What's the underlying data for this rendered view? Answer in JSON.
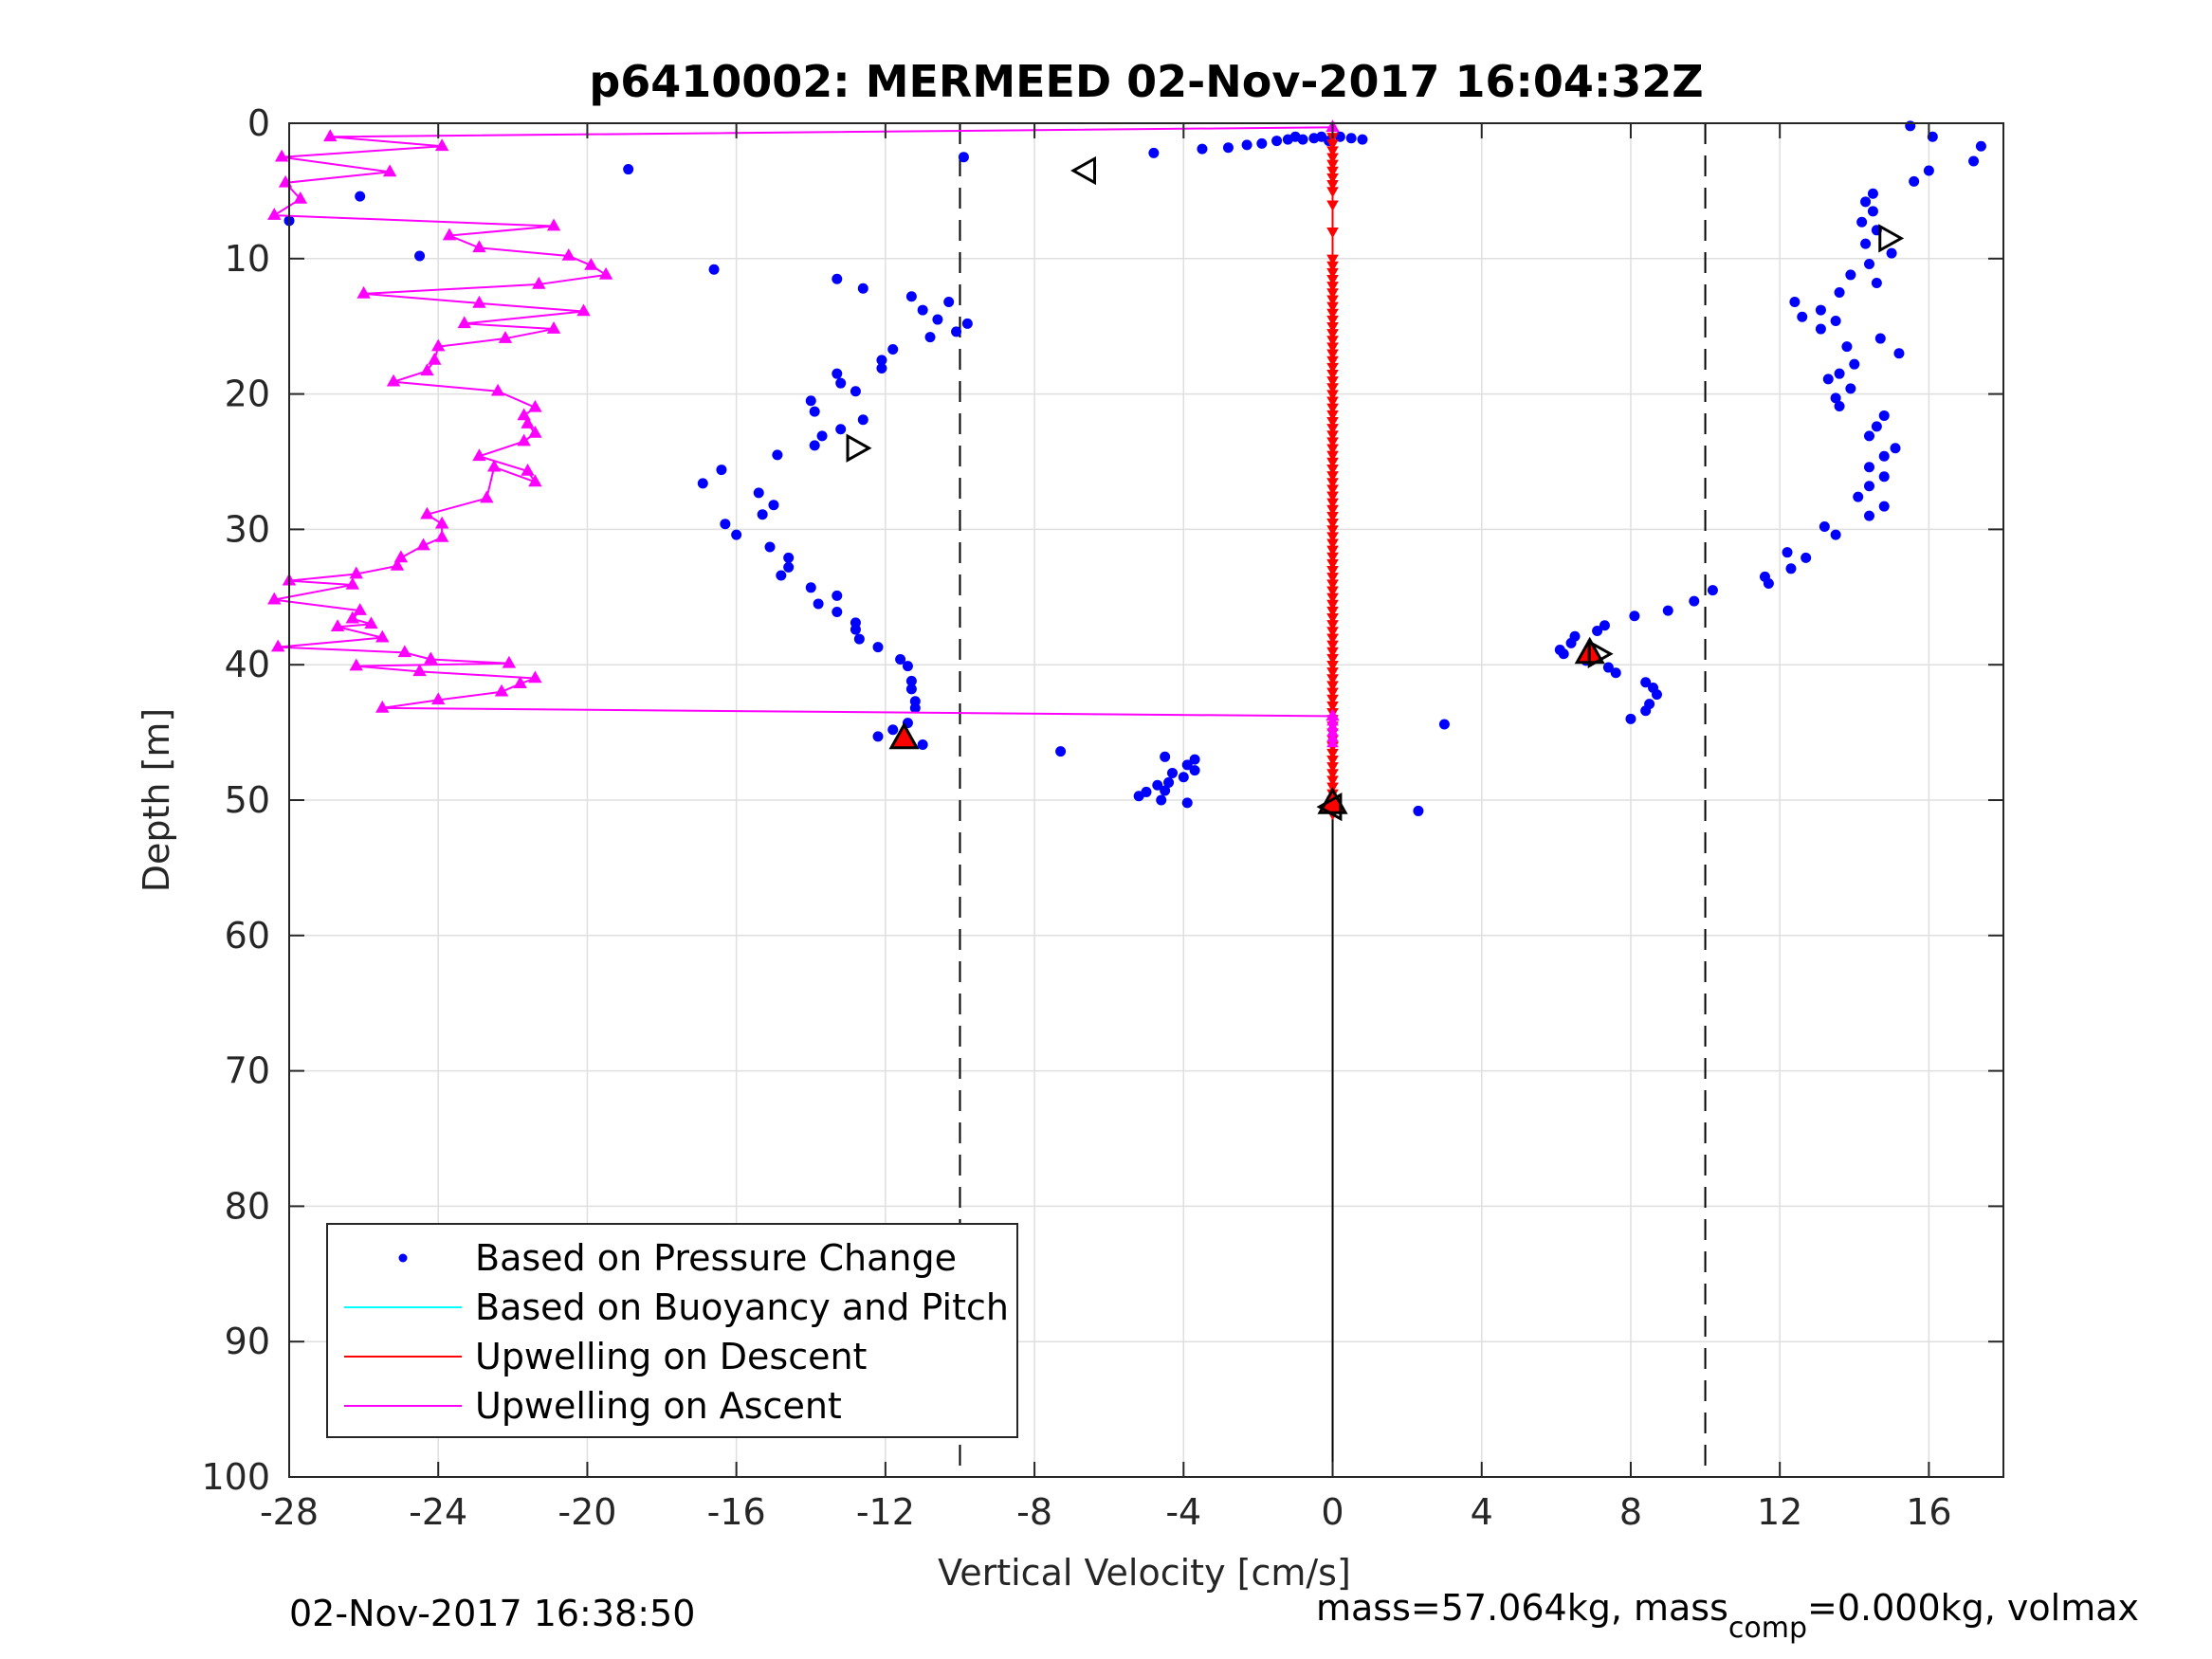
{
  "chart_data": {
    "type": "scatter",
    "title": "p6410002: MERMEED 02-Nov-2017 16:04:32Z",
    "xlabel": "Vertical Velocity [cm/s]",
    "ylabel": "Depth [m]",
    "xlim": [
      -28,
      18
    ],
    "ylim": [
      0,
      100
    ],
    "y_reversed": true,
    "grid": true,
    "xticks": [
      -28,
      -24,
      -20,
      -16,
      -12,
      -8,
      -4,
      0,
      4,
      8,
      12,
      16
    ],
    "yticks": [
      0,
      10,
      20,
      30,
      40,
      50,
      60,
      70,
      80,
      90,
      100
    ],
    "reference_lines": {
      "dashed_x": [
        -10,
        10
      ],
      "solid_x": 0,
      "solid_x_depth_range": [
        44,
        100
      ]
    },
    "legend": {
      "placement": "bottom-left",
      "entries": [
        {
          "label": "Based on Pressure Change",
          "color": "#0000ff",
          "marker": "dot"
        },
        {
          "label": "Based on Buoyancy and Pitch",
          "color": "#00ffff",
          "marker": "line"
        },
        {
          "label": "Upwelling on Descent",
          "color": "#ff0000",
          "marker": "line"
        },
        {
          "label": "Upwelling on Ascent",
          "color": "#ff00ff",
          "marker": "line"
        }
      ]
    },
    "series": [
      {
        "name": "Based on Pressure Change",
        "color": "#0000ff",
        "style": "dots",
        "points": [
          [
            -28.0,
            7.2
          ],
          [
            -26.1,
            5.4
          ],
          [
            -24.5,
            9.8
          ],
          [
            -18.9,
            3.4
          ],
          [
            -16.6,
            10.8
          ],
          [
            -9.9,
            2.5
          ],
          [
            -4.8,
            2.2
          ],
          [
            -3.5,
            1.9
          ],
          [
            -2.8,
            1.8
          ],
          [
            -2.3,
            1.6
          ],
          [
            -1.9,
            1.5
          ],
          [
            -1.5,
            1.3
          ],
          [
            -1.2,
            1.2
          ],
          [
            -1.0,
            1.0
          ],
          [
            -0.8,
            1.2
          ],
          [
            -0.5,
            1.1
          ],
          [
            -0.3,
            1.0
          ],
          [
            -0.1,
            1.3
          ],
          [
            0.2,
            1.0
          ],
          [
            0.5,
            1.1
          ],
          [
            0.8,
            1.2
          ],
          [
            -13.3,
            11.5
          ],
          [
            -12.6,
            12.2
          ],
          [
            -11.3,
            12.8
          ],
          [
            -11.0,
            13.8
          ],
          [
            -10.3,
            13.2
          ],
          [
            -10.6,
            14.5
          ],
          [
            -9.8,
            14.8
          ],
          [
            -10.1,
            15.4
          ],
          [
            -10.8,
            15.8
          ],
          [
            -11.8,
            16.7
          ],
          [
            -12.1,
            17.5
          ],
          [
            -12.1,
            18.1
          ],
          [
            -13.3,
            18.5
          ],
          [
            -13.2,
            19.2
          ],
          [
            -12.8,
            19.8
          ],
          [
            -14.0,
            20.5
          ],
          [
            -13.9,
            21.3
          ],
          [
            -12.6,
            21.9
          ],
          [
            -13.2,
            22.6
          ],
          [
            -13.7,
            23.1
          ],
          [
            -13.9,
            23.8
          ],
          [
            -14.9,
            24.5
          ],
          [
            -16.4,
            25.6
          ],
          [
            -16.9,
            26.6
          ],
          [
            -15.4,
            27.3
          ],
          [
            -15.0,
            28.2
          ],
          [
            -15.3,
            28.9
          ],
          [
            -16.3,
            29.6
          ],
          [
            -16.0,
            30.4
          ],
          [
            -15.1,
            31.3
          ],
          [
            -14.6,
            32.1
          ],
          [
            -14.6,
            32.8
          ],
          [
            -14.8,
            33.4
          ],
          [
            -14.0,
            34.3
          ],
          [
            -13.3,
            34.9
          ],
          [
            -13.8,
            35.5
          ],
          [
            -13.3,
            36.1
          ],
          [
            -12.8,
            36.9
          ],
          [
            -12.8,
            37.4
          ],
          [
            -12.7,
            38.1
          ],
          [
            -12.2,
            38.7
          ],
          [
            -11.6,
            39.6
          ],
          [
            -11.4,
            40.1
          ],
          [
            -11.3,
            41.2
          ],
          [
            -11.3,
            41.8
          ],
          [
            -11.2,
            42.7
          ],
          [
            -11.2,
            43.2
          ],
          [
            -11.4,
            44.3
          ],
          [
            -11.8,
            44.8
          ],
          [
            -12.2,
            45.3
          ],
          [
            -11.0,
            45.9
          ],
          [
            -7.3,
            46.4
          ],
          [
            -4.5,
            46.8
          ],
          [
            -3.7,
            47.0
          ],
          [
            -3.9,
            47.4
          ],
          [
            -3.7,
            47.8
          ],
          [
            -4.3,
            48.0
          ],
          [
            -4.0,
            48.3
          ],
          [
            -4.4,
            48.7
          ],
          [
            -4.7,
            48.9
          ],
          [
            -4.5,
            49.3
          ],
          [
            -5.0,
            49.4
          ],
          [
            -5.2,
            49.7
          ],
          [
            -4.6,
            50.0
          ],
          [
            -3.9,
            50.2
          ],
          [
            3.0,
            44.4
          ],
          [
            2.3,
            50.8
          ],
          [
            0.1,
            50.5
          ],
          [
            15.5,
            0.2
          ],
          [
            16.1,
            1.0
          ],
          [
            17.4,
            1.7
          ],
          [
            17.2,
            2.8
          ],
          [
            16.0,
            3.5
          ],
          [
            15.6,
            4.3
          ],
          [
            14.5,
            5.2
          ],
          [
            14.3,
            5.8
          ],
          [
            14.5,
            6.5
          ],
          [
            14.2,
            7.3
          ],
          [
            14.6,
            7.9
          ],
          [
            14.3,
            8.9
          ],
          [
            15.0,
            9.6
          ],
          [
            14.4,
            10.4
          ],
          [
            13.9,
            11.2
          ],
          [
            14.6,
            11.8
          ],
          [
            13.6,
            12.5
          ],
          [
            12.4,
            13.2
          ],
          [
            13.1,
            13.8
          ],
          [
            12.6,
            14.3
          ],
          [
            13.5,
            14.6
          ],
          [
            13.1,
            15.2
          ],
          [
            14.7,
            15.9
          ],
          [
            13.8,
            16.5
          ],
          [
            15.2,
            17.0
          ],
          [
            14.0,
            17.8
          ],
          [
            13.6,
            18.5
          ],
          [
            13.3,
            18.9
          ],
          [
            13.9,
            19.6
          ],
          [
            13.5,
            20.3
          ],
          [
            13.6,
            20.9
          ],
          [
            14.8,
            21.6
          ],
          [
            14.6,
            22.4
          ],
          [
            14.4,
            23.1
          ],
          [
            15.1,
            24.0
          ],
          [
            14.8,
            24.6
          ],
          [
            14.4,
            25.4
          ],
          [
            14.8,
            26.1
          ],
          [
            14.4,
            26.8
          ],
          [
            14.1,
            27.6
          ],
          [
            14.8,
            28.3
          ],
          [
            14.4,
            29.0
          ],
          [
            13.2,
            29.8
          ],
          [
            13.5,
            30.4
          ],
          [
            12.2,
            31.7
          ],
          [
            12.7,
            32.1
          ],
          [
            12.3,
            32.9
          ],
          [
            11.6,
            33.5
          ],
          [
            11.7,
            34.0
          ],
          [
            10.2,
            34.5
          ],
          [
            9.7,
            35.3
          ],
          [
            9.0,
            36.0
          ],
          [
            8.1,
            36.4
          ],
          [
            7.3,
            37.1
          ],
          [
            7.1,
            37.5
          ],
          [
            6.5,
            37.9
          ],
          [
            6.4,
            38.4
          ],
          [
            6.1,
            38.9
          ],
          [
            6.2,
            39.2
          ],
          [
            6.8,
            39.7
          ],
          [
            7.4,
            40.2
          ],
          [
            7.6,
            40.6
          ],
          [
            8.4,
            41.3
          ],
          [
            8.6,
            41.7
          ],
          [
            8.7,
            42.2
          ],
          [
            8.5,
            42.9
          ],
          [
            8.4,
            43.4
          ],
          [
            8.0,
            44.0
          ]
        ]
      },
      {
        "name": "Upwelling on Descent",
        "color": "#ff0000",
        "style": "line-with-down-triangles",
        "depth_range": [
          1,
          51
        ],
        "x_value": 0
      },
      {
        "name": "Upwelling on Ascent",
        "color": "#ff00ff",
        "style": "line-with-up-triangles",
        "points": [
          [
            0.0,
            0.3
          ],
          [
            -26.9,
            1.0
          ],
          [
            -23.9,
            1.7
          ],
          [
            -28.2,
            2.5
          ],
          [
            -25.3,
            3.6
          ],
          [
            -28.1,
            4.4
          ],
          [
            -27.7,
            5.6
          ],
          [
            -28.4,
            6.8
          ],
          [
            -20.9,
            7.6
          ],
          [
            -23.7,
            8.3
          ],
          [
            -22.9,
            9.2
          ],
          [
            -20.5,
            9.8
          ],
          [
            -19.9,
            10.5
          ],
          [
            -19.5,
            11.2
          ],
          [
            -21.3,
            11.9
          ],
          [
            -26.0,
            12.6
          ],
          [
            -22.9,
            13.3
          ],
          [
            -20.1,
            13.9
          ],
          [
            -23.3,
            14.8
          ],
          [
            -20.9,
            15.2
          ],
          [
            -22.2,
            15.9
          ],
          [
            -24.0,
            16.5
          ],
          [
            -24.1,
            17.5
          ],
          [
            -24.3,
            18.3
          ],
          [
            -25.2,
            19.1
          ],
          [
            -22.4,
            19.8
          ],
          [
            -21.4,
            21.0
          ],
          [
            -21.7,
            21.6
          ],
          [
            -21.6,
            22.2
          ],
          [
            -21.4,
            22.9
          ],
          [
            -21.7,
            23.5
          ],
          [
            -22.9,
            24.6
          ],
          [
            -21.6,
            25.7
          ],
          [
            -21.4,
            26.5
          ],
          [
            -22.5,
            25.4
          ],
          [
            -22.7,
            27.7
          ],
          [
            -24.3,
            28.9
          ],
          [
            -23.9,
            29.6
          ],
          [
            -23.9,
            30.6
          ],
          [
            -24.4,
            31.2
          ],
          [
            -25.0,
            32.1
          ],
          [
            -25.1,
            32.7
          ],
          [
            -26.2,
            33.3
          ],
          [
            -28.0,
            33.8
          ],
          [
            -26.3,
            34.1
          ],
          [
            -28.4,
            35.2
          ],
          [
            -26.1,
            36.0
          ],
          [
            -26.3,
            36.6
          ],
          [
            -25.8,
            37.0
          ],
          [
            -26.7,
            37.2
          ],
          [
            -25.5,
            38.0
          ],
          [
            -28.3,
            38.7
          ],
          [
            -24.9,
            39.1
          ],
          [
            -24.2,
            39.6
          ],
          [
            -22.1,
            39.9
          ],
          [
            -26.2,
            40.1
          ],
          [
            -24.5,
            40.5
          ],
          [
            -21.4,
            41.0
          ],
          [
            -21.8,
            41.4
          ],
          [
            -22.3,
            42.0
          ],
          [
            -24.0,
            42.6
          ],
          [
            -25.5,
            43.2
          ],
          [
            0.0,
            43.8
          ]
        ]
      }
    ],
    "markers": [
      {
        "type": "open-left-triangle",
        "x": -6.6,
        "y": 3.5
      },
      {
        "type": "open-right-triangle",
        "x": -12.8,
        "y": 24.0
      },
      {
        "type": "open-right-triangle",
        "x": 14.9,
        "y": 8.5
      },
      {
        "type": "red-up-triangle",
        "x": -11.5,
        "y": 45.5
      },
      {
        "type": "red-up-triangle",
        "x": 0.0,
        "y": 50.3
      },
      {
        "type": "red-up-triangle",
        "x": 6.9,
        "y": 39.2
      },
      {
        "type": "open-right-triangle",
        "x": 7.1,
        "y": 39.2
      },
      {
        "type": "open-left-triangle",
        "x": 0.0,
        "y": 50.5
      }
    ]
  },
  "footer": {
    "timestamp": "02-Nov-2017 16:38:50",
    "mass_prefix": "mass=57.064kg, mass",
    "mass_sub": "comp",
    "mass_suffix": "=0.000kg, volmax"
  }
}
